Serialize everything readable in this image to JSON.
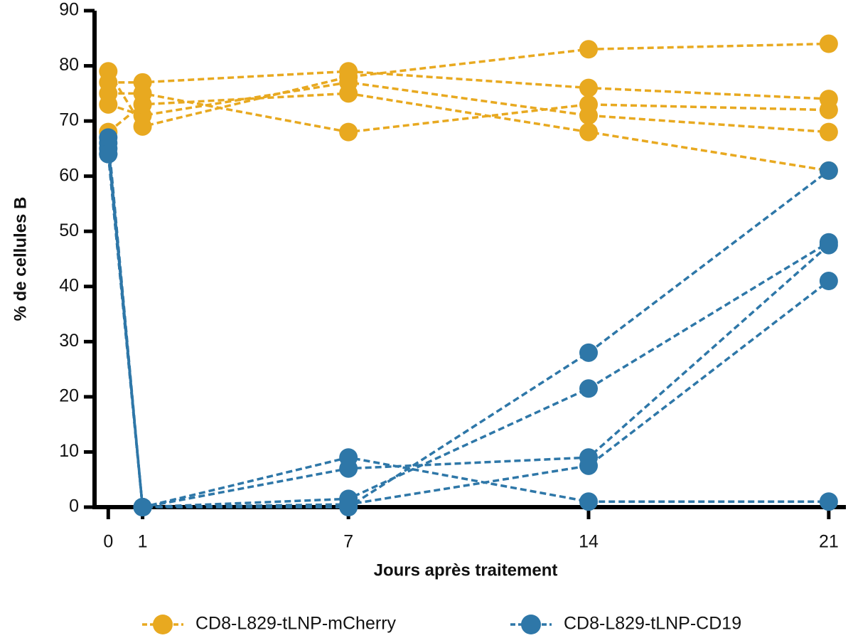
{
  "chart_data": {
    "type": "line",
    "x_label": "Jours après traitement",
    "y_label": "% de cellules B",
    "x": [
      0,
      1,
      7,
      14,
      21
    ],
    "xlim": [
      -0.4,
      21.5
    ],
    "xticks": [
      0,
      1,
      7,
      14,
      21
    ],
    "ylim": [
      0,
      90
    ],
    "yticks": [
      0,
      10,
      20,
      30,
      40,
      50,
      60,
      70,
      80,
      90
    ],
    "series": [
      {
        "name": "CD8-L829-tLNP-mCherry",
        "color": "#e8a920",
        "values": [
          [
            79,
            69,
            78,
            83,
            84
          ],
          [
            77,
            77,
            79,
            76,
            74
          ],
          [
            75,
            75,
            68,
            73,
            72
          ],
          [
            73,
            71,
            77,
            71,
            68
          ],
          [
            68,
            73,
            75,
            68,
            61
          ]
        ]
      },
      {
        "name": "CD8-L829-tLNP-CD19",
        "color": "#2e77a8",
        "values": [
          [
            64,
            0,
            0,
            28,
            61
          ],
          [
            66,
            0,
            1.5,
            21.5,
            48
          ],
          [
            65,
            0,
            9,
            1,
            1
          ],
          [
            67,
            0,
            7,
            9,
            47.5
          ],
          [
            64,
            0,
            0.5,
            7.5,
            41
          ]
        ]
      }
    ]
  }
}
